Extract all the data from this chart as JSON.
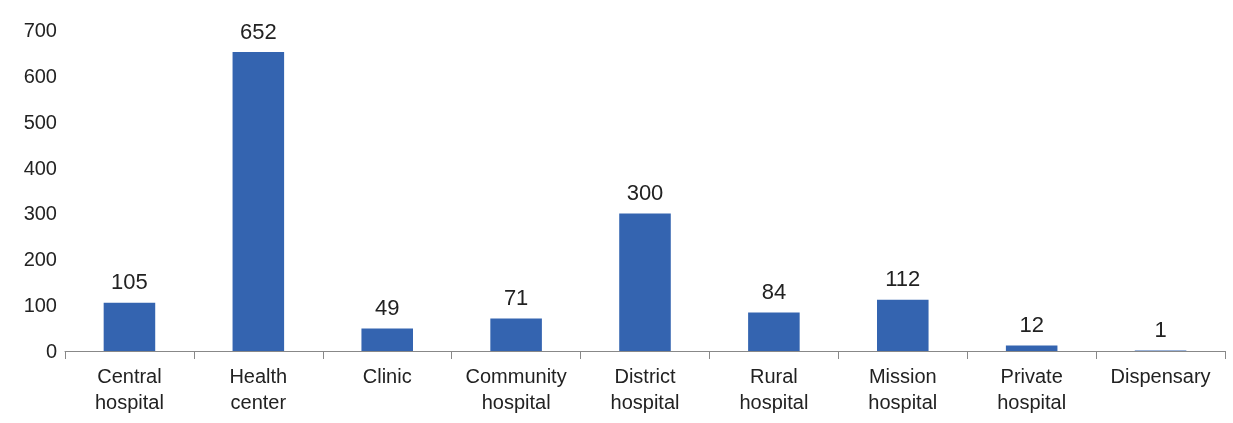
{
  "chart_data": {
    "type": "bar",
    "categories": [
      "Central\nhospital",
      "Health\ncenter",
      "Clinic",
      "Community\nhospital",
      "District\nhospital",
      "Rural\nhospital",
      "Mission\nhospital",
      "Private\nhospital",
      "Dispensary"
    ],
    "values": [
      105,
      652,
      49,
      71,
      300,
      84,
      112,
      12,
      1
    ],
    "color": "#3464b0",
    "ylim": [
      0,
      700
    ],
    "yticks": [
      0,
      100,
      200,
      300,
      400,
      500,
      600,
      700
    ],
    "data_labels": true,
    "grid": false
  }
}
